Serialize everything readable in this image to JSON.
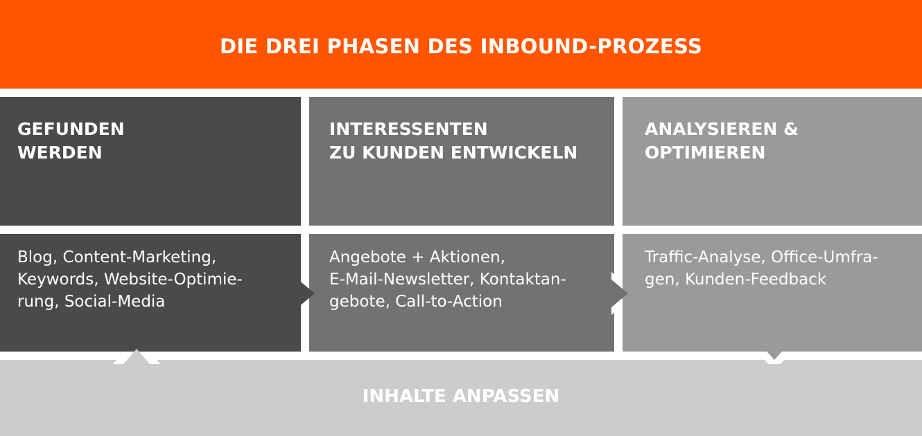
{
  "header": {
    "title": "DIE DREI PHASEN DES INBOUND-PROZESS"
  },
  "phases": [
    {
      "heading": "GEFUNDEN\nWERDEN",
      "body": "Blog, Content-Marketing,\nKeywords, Website-Optimie-\nrung, Social-Media"
    },
    {
      "heading": "INTERESSENTEN\nZU KUNDEN ENTWICKELN",
      "body": "Angebote + Aktionen,\nE-Mail-Newsletter, Kontaktan-\ngebote, Call-to-Action"
    },
    {
      "heading": "ANALYSIEREN &\nOPTIMIEREN",
      "body": "Traffic-Analyse, Office-Umfra-\ngen, Kunden-Feedback"
    }
  ],
  "footer": {
    "label": "INHALTE ANPASSEN"
  },
  "colors": {
    "accent": "#ff5500",
    "phase1": "#4a4a4a",
    "phase2": "#727272",
    "phase3": "#9a9a9a",
    "footer": "#cccccc"
  }
}
